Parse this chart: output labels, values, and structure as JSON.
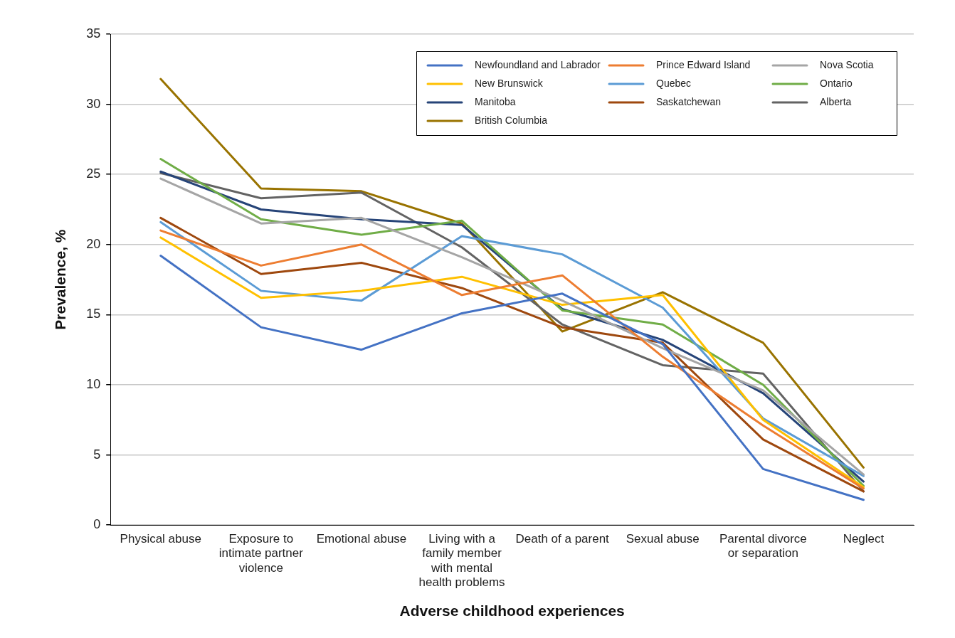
{
  "chart_data": {
    "type": "line",
    "xlabel": "Adverse childhood experiences",
    "ylabel": "Prevalence, %",
    "categories": [
      "Physical abuse",
      "Exposure to intimate partner violence",
      "Emotional abuse",
      "Living with a family member with mental health problems",
      "Death of a parent",
      "Sexual abuse",
      "Parental divorce or separation",
      "Neglect"
    ],
    "ylim": [
      0,
      35
    ],
    "yticks": [
      0,
      5,
      10,
      15,
      20,
      25,
      30,
      35
    ],
    "grid": "y",
    "legend": "top right",
    "marker": "none",
    "line_style": "solid",
    "series": [
      {
        "name": "Newfoundland and Labrador",
        "color": "#4472c4",
        "values": [
          19.2,
          14.1,
          12.5,
          15.1,
          16.5,
          12.9,
          4.0,
          1.8
        ]
      },
      {
        "name": "Prince Edward Island",
        "color": "#ed7d31",
        "values": [
          21.0,
          18.5,
          20.0,
          16.4,
          17.8,
          12.0,
          7.1,
          2.6
        ]
      },
      {
        "name": "Nova Scotia",
        "color": "#a5a5a5",
        "values": [
          24.7,
          21.5,
          21.9,
          19.1,
          16.0,
          12.6,
          9.6,
          3.6
        ]
      },
      {
        "name": "New Brunswick",
        "color": "#ffc000",
        "values": [
          20.5,
          16.2,
          16.7,
          17.7,
          15.7,
          16.4,
          7.5,
          2.7
        ]
      },
      {
        "name": "Quebec",
        "color": "#5b9bd5",
        "values": [
          21.6,
          16.7,
          16.0,
          20.6,
          19.3,
          15.5,
          7.6,
          3.5
        ]
      },
      {
        "name": "Ontario",
        "color": "#70ad47",
        "values": [
          26.1,
          21.8,
          20.7,
          21.7,
          15.3,
          14.3,
          10.0,
          2.8
        ]
      },
      {
        "name": "Manitoba",
        "color": "#264478",
        "values": [
          25.2,
          22.5,
          21.8,
          21.4,
          15.4,
          13.2,
          9.4,
          3.1
        ]
      },
      {
        "name": "Saskatchewan",
        "color": "#9e480e",
        "values": [
          21.9,
          17.9,
          18.7,
          16.9,
          14.1,
          13.0,
          6.1,
          2.4
        ]
      },
      {
        "name": "Alberta",
        "color": "#636363",
        "values": [
          25.1,
          23.3,
          23.7,
          19.8,
          14.3,
          11.4,
          10.8,
          2.4
        ]
      },
      {
        "name": "British Columbia",
        "color": "#997300",
        "values": [
          31.8,
          24.0,
          23.8,
          21.5,
          13.8,
          16.6,
          13.0,
          4.1
        ]
      }
    ]
  }
}
